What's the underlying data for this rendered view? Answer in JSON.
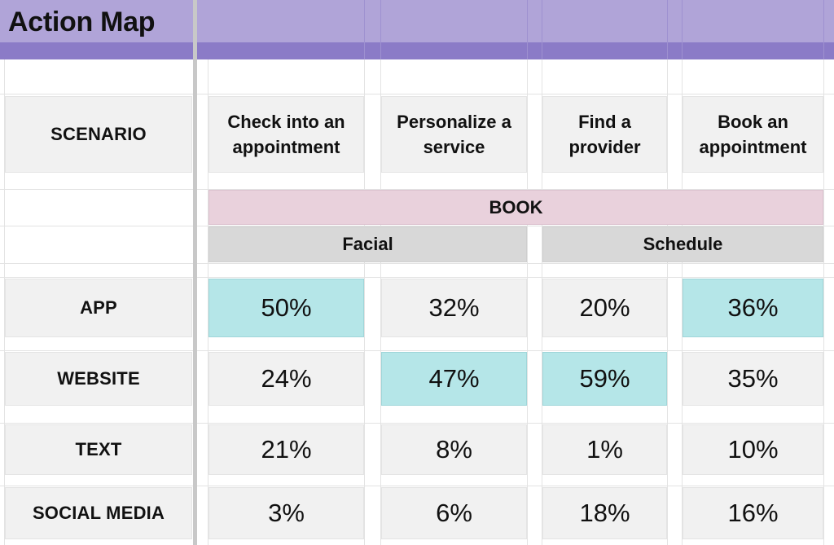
{
  "header": {
    "title": "Action Map"
  },
  "table": {
    "scenario_label": "SCENARIO",
    "columns": [
      "Check into an appointment",
      "Personalize a service",
      "Find a provider",
      "Book an appointment"
    ],
    "stage": "BOOK",
    "groups": [
      "Facial",
      "Schedule"
    ],
    "rows": [
      {
        "label": "APP",
        "values": [
          "50%",
          "32%",
          "20%",
          "36%"
        ]
      },
      {
        "label": "WEBSITE",
        "values": [
          "24%",
          "47%",
          "59%",
          "35%"
        ]
      },
      {
        "label": "TEXT",
        "values": [
          "21%",
          "8%",
          "1%",
          "10%"
        ]
      },
      {
        "label": "SOCIAL MEDIA",
        "values": [
          "3%",
          "6%",
          "18%",
          "16%"
        ]
      }
    ],
    "highlight_color": "#b5e6e8"
  }
}
